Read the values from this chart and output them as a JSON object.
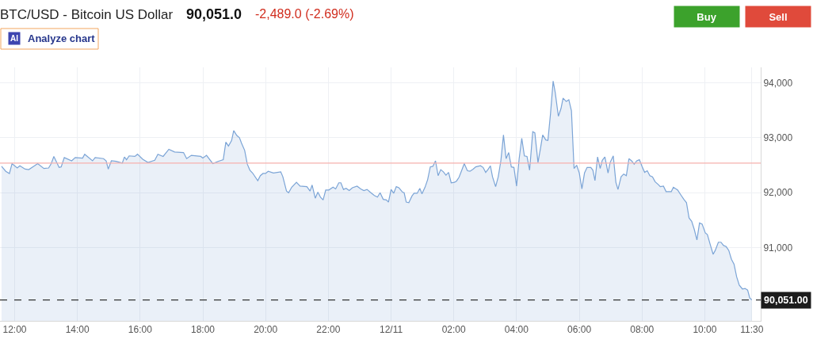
{
  "chart_data": {
    "type": "area",
    "title": "BTC/USD - Bitcoin US Dollar",
    "subtitle": "90,051.0",
    "annotations": [
      "-2,489.0 (-2.69%)",
      "AI",
      "Analyze chart",
      "Buy",
      "Sell"
    ],
    "color": "#7ba4d6",
    "grid": true,
    "xlim": [
      "--12-10T11:32",
      "--12-11T11:47"
    ],
    "ylim": [
      89670,
      94280
    ],
    "xticks": [
      {
        "value": "--12-10T12:00",
        "label": "12:00"
      },
      {
        "value": "--12-10T14:00",
        "label": "14:00"
      },
      {
        "value": "--12-10T16:00",
        "label": "16:00"
      },
      {
        "value": "--12-10T18:00",
        "label": "18:00"
      },
      {
        "value": "--12-10T20:00",
        "label": "20:00"
      },
      {
        "value": "--12-10T22:00",
        "label": "22:00"
      },
      {
        "value": "--12-11T00:00",
        "label": "12/11"
      },
      {
        "value": "--12-11T02:00",
        "label": "02:00"
      },
      {
        "value": "--12-11T04:00",
        "label": "04:00"
      },
      {
        "value": "--12-11T06:00",
        "label": "06:00"
      },
      {
        "value": "--12-11T08:00",
        "label": "08:00"
      },
      {
        "value": "--12-11T10:00",
        "label": "10:00"
      },
      {
        "value": "--12-11T11:30",
        "label": "11:30"
      }
    ],
    "yticks": [
      {
        "value": 91000,
        "label": "91,000"
      },
      {
        "value": 92000,
        "label": "92,000"
      },
      {
        "value": 93000,
        "label": "93,000"
      },
      {
        "value": 94000,
        "label": "94,000"
      }
    ],
    "ref_lines": [
      {
        "axis": "y",
        "value": 92540,
        "color": "#f6b0ad"
      },
      {
        "axis": "y",
        "value": 90051,
        "label": "90,051.00",
        "color": "#333333",
        "line_style": "dashed"
      }
    ],
    "x": [
      "--12-10T11:35",
      "--12-10T11:43",
      "--12-10T11:50",
      "--12-10T11:55",
      "--12-10T12:05",
      "--12-10T12:10",
      "--12-10T12:20",
      "--12-10T12:27",
      "--12-10T12:38",
      "--12-10T12:44",
      "--12-10T12:56",
      "--12-10T13:05",
      "--12-10T13:10",
      "--12-10T13:15",
      "--12-10T13:25",
      "--12-10T13:29",
      "--12-10T13:35",
      "--12-10T13:49",
      "--12-10T13:56",
      "--12-10T14:10",
      "--12-10T14:14",
      "--12-10T14:29",
      "--12-10T14:34",
      "--12-10T14:50",
      "--12-10T14:55",
      "--12-10T14:59",
      "--12-10T15:05",
      "--12-10T15:14",
      "--12-10T15:26",
      "--12-10T15:30",
      "--12-10T15:34",
      "--12-10T15:39",
      "--12-10T15:50",
      "--12-10T15:55",
      "--12-10T16:05",
      "--12-10T16:15",
      "--12-10T16:28",
      "--12-10T16:34",
      "--12-10T16:44",
      "--12-10T16:55",
      "--12-10T17:06",
      "--12-10T17:23",
      "--12-10T17:29",
      "--12-10T17:38",
      "--12-10T17:56",
      "--12-10T18:00",
      "--12-10T18:07",
      "--12-10T18:19",
      "--12-10T18:29",
      "--12-10T18:39",
      "--12-10T18:44",
      "--12-10T18:49",
      "--12-10T18:55",
      "--12-10T18:59",
      "--12-10T19:05",
      "--12-10T19:10",
      "--12-10T19:14",
      "--12-10T19:20",
      "--12-10T19:25",
      "--12-10T19:30",
      "--12-10T19:35",
      "--12-10T19:45",
      "--12-10T19:50",
      "--12-10T19:55",
      "--12-10T20:00",
      "--12-10T20:05",
      "--12-10T20:15",
      "--12-10T20:29",
      "--12-10T20:33",
      "--12-10T20:40",
      "--12-10T20:44",
      "--12-10T20:50",
      "--12-10T20:59",
      "--12-10T21:06",
      "--12-10T21:19",
      "--12-10T21:25",
      "--12-10T21:29",
      "--12-10T21:35",
      "--12-10T21:40",
      "--12-10T21:45",
      "--12-10T21:50",
      "--12-10T21:55",
      "--12-10T22:01",
      "--12-10T22:09",
      "--12-10T22:14",
      "--12-10T22:20",
      "--12-10T22:24",
      "--12-10T22:29",
      "--12-10T22:34",
      "--12-10T22:40",
      "--12-10T22:46",
      "--12-10T22:55",
      "--12-10T23:02",
      "--12-10T23:08",
      "--12-10T23:14",
      "--12-10T23:20",
      "--12-10T23:28",
      "--12-10T23:34",
      "--12-10T23:39",
      "--12-10T23:45",
      "--12-10T23:51",
      "--12-10T23:55",
      "--12-11T00:00",
      "--12-11T00:05",
      "--12-11T00:10",
      "--12-11T00:15",
      "--12-11T00:22",
      "--12-11T00:25",
      "--12-11T00:29",
      "--12-11T00:34",
      "--12-11T00:40",
      "--12-11T00:44",
      "--12-11T00:50",
      "--12-11T00:55",
      "--12-11T00:59",
      "--12-11T01:05",
      "--12-11T01:10",
      "--12-11T01:15",
      "--12-11T01:20",
      "--12-11T01:25",
      "--12-11T01:30",
      "--12-11T01:35",
      "--12-11T01:40",
      "--12-11T01:45",
      "--12-11T01:50",
      "--12-11T01:55",
      "--12-11T02:01",
      "--12-11T02:05",
      "--12-11T02:10",
      "--12-11T02:16",
      "--12-11T02:20",
      "--12-11T02:26",
      "--12-11T02:31",
      "--12-11T02:37",
      "--12-11T02:42",
      "--12-11T02:51",
      "--12-11T02:56",
      "--12-11T03:01",
      "--12-11T03:06",
      "--12-11T03:10",
      "--12-11T03:14",
      "--12-11T03:20",
      "--12-11T03:25",
      "--12-11T03:30",
      "--12-11T03:35",
      "--12-11T03:40",
      "--12-11T03:45",
      "--12-11T03:50",
      "--12-11T03:55",
      "--12-11T04:00",
      "--12-11T04:05",
      "--12-11T04:10",
      "--12-11T04:15",
      "--12-11T04:20",
      "--12-11T04:25",
      "--12-11T04:31",
      "--12-11T04:35",
      "--12-11T04:41",
      "--12-11T04:46",
      "--12-11T04:50",
      "--12-11T04:56",
      "--12-11T05:00",
      "--12-11T05:05",
      "--12-11T05:10",
      "--12-11T05:14",
      "--12-11T05:20",
      "--12-11T05:25",
      "--12-11T05:29",
      "--12-11T05:35",
      "--12-11T05:40",
      "--12-11T05:45",
      "--12-11T05:50",
      "--12-11T05:55",
      "--12-11T06:00",
      "--12-11T06:05",
      "--12-11T06:10",
      "--12-11T06:15",
      "--12-11T06:22",
      "--12-11T06:26",
      "--12-11T06:30",
      "--12-11T06:35",
      "--12-11T06:40",
      "--12-11T06:44",
      "--12-11T06:49",
      "--12-11T06:55",
      "--12-11T06:59",
      "--12-11T07:05",
      "--12-11T07:10",
      "--12-11T07:14",
      "--12-11T07:20",
      "--12-11T07:25",
      "--12-11T07:30",
      "--12-11T07:35",
      "--12-11T07:40",
      "--12-11T07:45",
      "--12-11T07:50",
      "--12-11T07:55",
      "--12-11T08:00",
      "--12-11T08:05",
      "--12-11T08:10",
      "--12-11T08:15",
      "--12-11T08:20",
      "--12-11T08:25",
      "--12-11T08:31",
      "--12-11T08:35",
      "--12-11T08:41",
      "--12-11T08:46",
      "--12-11T08:56",
      "--12-11T09:00",
      "--12-11T09:05",
      "--12-11T09:08",
      "--12-11T09:15",
      "--12-11T09:20",
      "--12-11T09:25",
      "--12-11T09:30",
      "--12-11T09:35",
      "--12-11T09:40",
      "--12-11T09:45",
      "--12-11T09:50",
      "--12-11T09:55",
      "--12-11T10:01",
      "--12-11T10:05",
      "--12-11T10:11",
      "--12-11T10:16",
      "--12-11T10:20",
      "--12-11T10:26",
      "--12-11T10:31",
      "--12-11T10:36",
      "--12-11T10:41",
      "--12-11T10:46",
      "--12-11T10:51",
      "--12-11T10:56",
      "--12-11T11:01",
      "--12-11T11:06",
      "--12-11T11:12",
      "--12-11T11:17",
      "--12-11T11:22",
      "--12-11T11:26",
      "--12-11T11:30"
    ],
    "values": [
      92480,
      92390,
      92350,
      92530,
      92450,
      92490,
      92430,
      92420,
      92490,
      92530,
      92440,
      92450,
      92530,
      92660,
      92460,
      92470,
      92640,
      92580,
      92640,
      92630,
      92700,
      92580,
      92640,
      92620,
      92580,
      92430,
      92580,
      92570,
      92540,
      92650,
      92600,
      92670,
      92660,
      92700,
      92610,
      92550,
      92590,
      92700,
      92660,
      92790,
      92740,
      92730,
      92620,
      92680,
      92660,
      92630,
      92680,
      92530,
      92570,
      92600,
      92920,
      92850,
      92950,
      93130,
      93040,
      93000,
      92900,
      92770,
      92520,
      92410,
      92360,
      92220,
      92310,
      92350,
      92350,
      92390,
      92360,
      92380,
      92290,
      92030,
      92000,
      92100,
      92190,
      92120,
      92110,
      92030,
      92140,
      91900,
      92010,
      91920,
      91870,
      92050,
      92050,
      92100,
      92070,
      92180,
      92180,
      92060,
      92080,
      92040,
      92090,
      92120,
      92070,
      92040,
      92060,
      92010,
      91950,
      91920,
      92000,
      91880,
      91870,
      91830,
      92060,
      91990,
      92110,
      92090,
      92010,
      92000,
      91830,
      91820,
      91940,
      91990,
      91990,
      92080,
      91980,
      92100,
      92240,
      92470,
      92480,
      92580,
      92310,
      92420,
      92380,
      92320,
      92370,
      92180,
      92190,
      92210,
      92280,
      92430,
      92530,
      92400,
      92390,
      92430,
      92470,
      92490,
      92460,
      92370,
      92430,
      92490,
      92290,
      92110,
      92290,
      92580,
      93050,
      92620,
      92730,
      92470,
      92460,
      92120,
      92620,
      92990,
      92670,
      92660,
      92410,
      93110,
      93090,
      92550,
      92820,
      93050,
      92960,
      92950,
      93440,
      94030,
      93820,
      93390,
      93530,
      93720,
      93660,
      93690,
      93490,
      92440,
      92500,
      92360,
      92070,
      92360,
      92460,
      92460,
      92410,
      92220,
      92650,
      92440,
      92590,
      92650,
      92360,
      92550,
      92670,
      92190,
      92060,
      92290,
      92340,
      92310,
      92620,
      92580,
      92520,
      92580,
      92600,
      92480,
      92370,
      92400,
      92310,
      92290,
      92200,
      92150,
      92110,
      92120,
      92020,
      92020,
      92100,
      92070,
      92050,
      91950,
      91880,
      91820,
      91540,
      91480,
      91330,
      91140,
      91450,
      91430,
      91270,
      91240,
      91040,
      90880,
      90950,
      91100,
      91100,
      91040,
      91020,
      90950,
      90790,
      90700,
      90470,
      90320,
      90250,
      90260,
      90230,
      90090,
      90050
    ]
  }
}
